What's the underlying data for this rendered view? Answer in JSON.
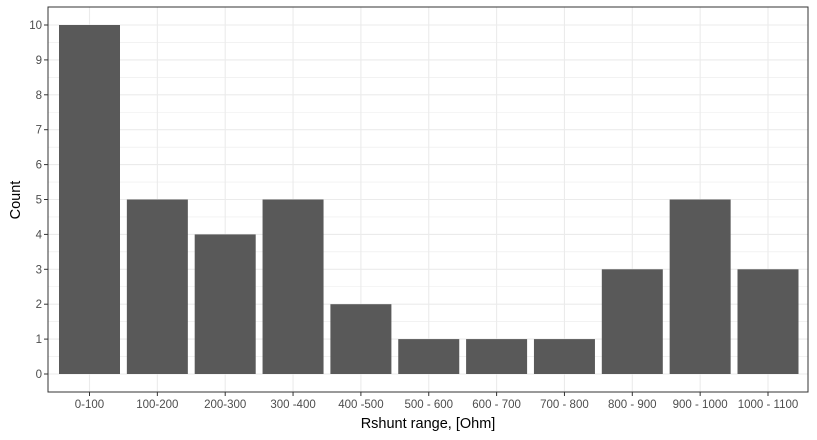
{
  "chart_data": {
    "type": "bar",
    "title": "",
    "xlabel": "Rshunt range, [Ohm]",
    "ylabel": "Count",
    "categories": [
      "0-100",
      "100-200",
      "200-300",
      "300 -400",
      "400 -500",
      "500 - 600",
      "600 - 700",
      "700 - 800",
      "800 - 900",
      "900 - 1000",
      "1000 - 1100"
    ],
    "values": [
      10,
      5,
      4,
      5,
      2,
      1,
      1,
      1,
      3,
      5,
      3
    ],
    "ylim": [
      0,
      10.5
    ],
    "yticks": [
      0,
      1,
      2,
      3,
      4,
      5,
      6,
      7,
      8,
      9,
      10
    ],
    "grid": true,
    "legend": "none",
    "bar_color": "#595959",
    "grid_color": "#ebebeb",
    "panel_border_color": "#333333"
  }
}
